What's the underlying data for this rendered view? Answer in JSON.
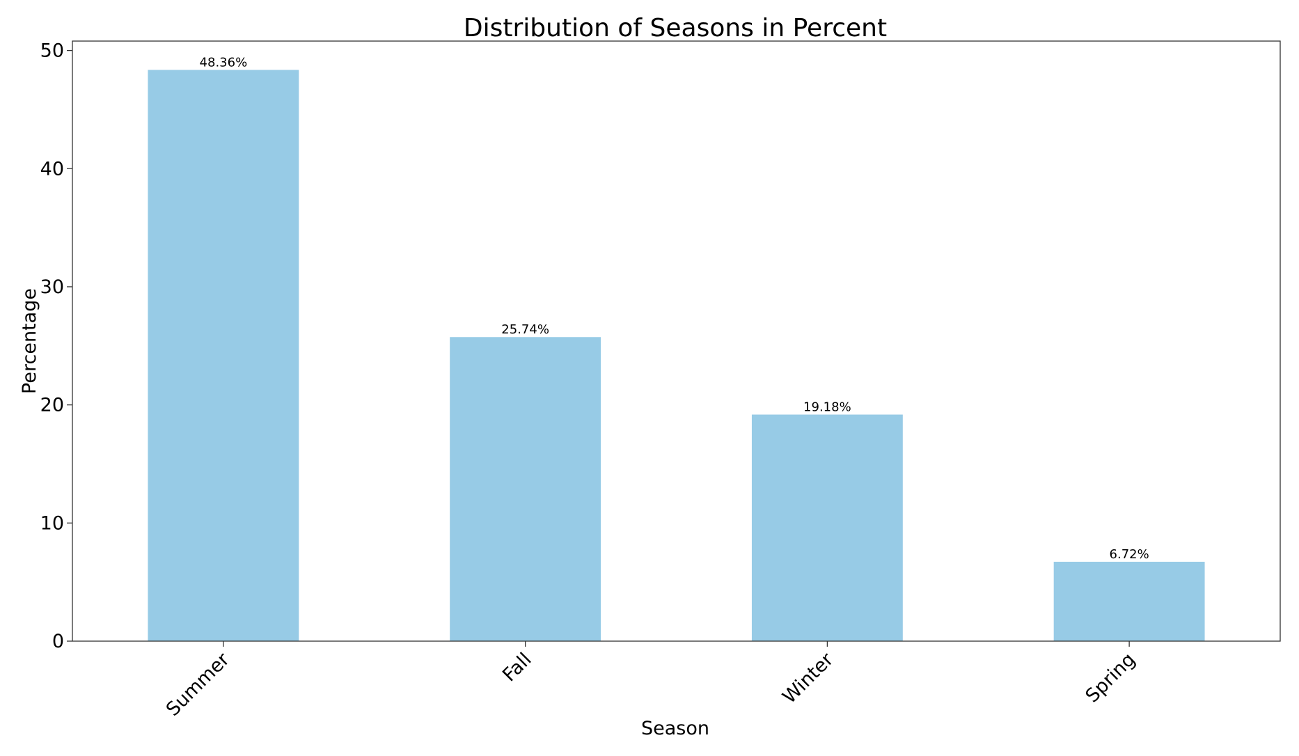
{
  "chart_data": {
    "type": "bar",
    "title": "Distribution of Seasons in Percent",
    "xlabel": "Season",
    "ylabel": "Percentage",
    "categories": [
      "Summer",
      "Fall",
      "Winter",
      "Spring"
    ],
    "values": [
      48.36,
      25.74,
      19.18,
      6.72
    ],
    "data_labels": [
      "48.36%",
      "25.74%",
      "19.18%",
      "6.72%"
    ],
    "ylim": [
      0,
      50.8
    ],
    "yticks": [
      0,
      10,
      20,
      30,
      40,
      50
    ],
    "ytick_labels": [
      "0",
      "10",
      "20",
      "30",
      "40",
      "50"
    ],
    "grid": false,
    "legend": "none",
    "bar_color": "#97cbe6",
    "xtick_rotation_deg": 45
  }
}
